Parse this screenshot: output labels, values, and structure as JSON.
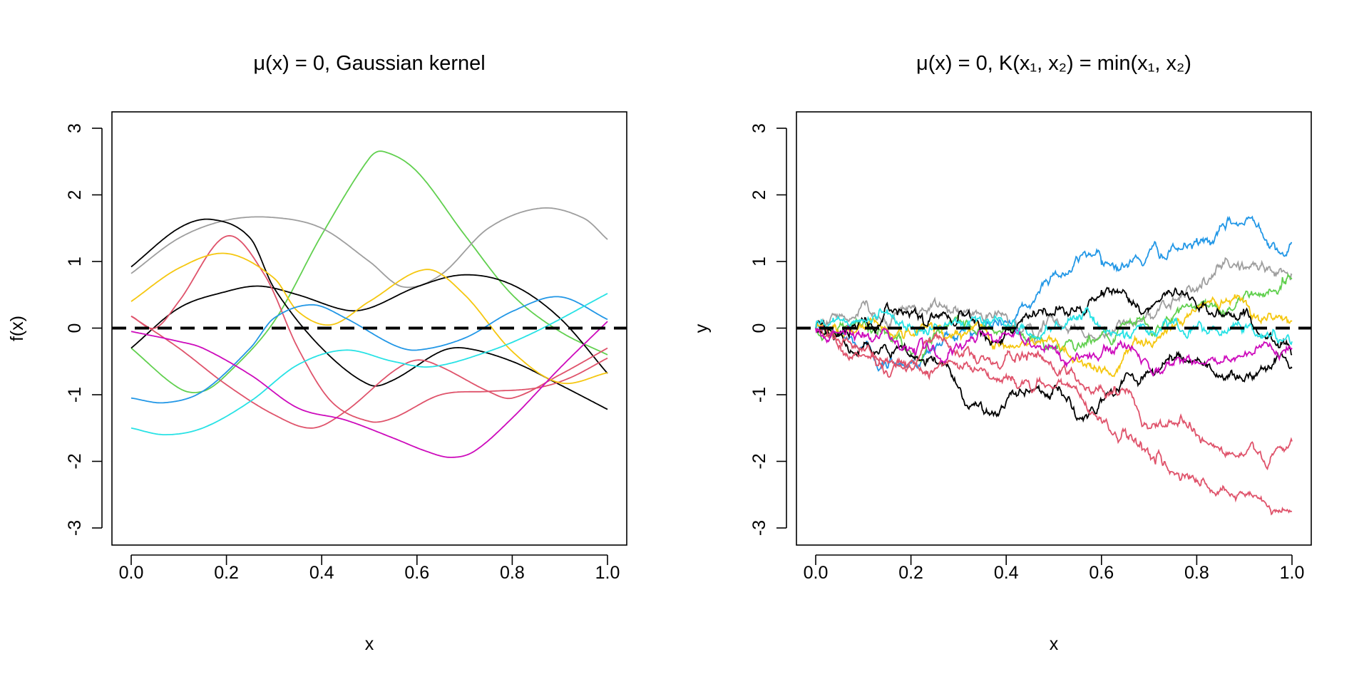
{
  "colors": {
    "black": "#000000",
    "red": "#DF536B",
    "green": "#61D04F",
    "blue": "#2297E6",
    "cyan": "#28E2E5",
    "magenta": "#CD0BBC",
    "yellow": "#F5C710",
    "gray": "#9E9E9E"
  },
  "chart_data": [
    {
      "type": "line",
      "title": "μ(x) = 0, Gaussian kernel",
      "xlabel": "x",
      "ylabel": "f(x)",
      "xlim": [
        0,
        1
      ],
      "ylim": [
        -3,
        3
      ],
      "xticks": [
        "0.0",
        "0.2",
        "0.4",
        "0.6",
        "0.8",
        "1.0"
      ],
      "yticks": [
        "-3",
        "-2",
        "-1",
        "0",
        "1",
        "2",
        "3"
      ],
      "reference_line": {
        "y": 0,
        "style": "dashed"
      },
      "series": [
        {
          "name": "green",
          "color": "#61D04F",
          "x": [
            0,
            0.1,
            0.15,
            0.2,
            0.3,
            0.4,
            0.5,
            0.53,
            0.6,
            0.7,
            0.8,
            0.9,
            1
          ],
          "y": [
            -0.3,
            -0.9,
            -0.95,
            -0.7,
            0.1,
            1.4,
            2.55,
            2.65,
            2.35,
            1.4,
            0.5,
            -0.05,
            -0.4
          ]
        },
        {
          "name": "gray",
          "color": "#9E9E9E",
          "x": [
            0,
            0.1,
            0.2,
            0.3,
            0.4,
            0.5,
            0.57,
            0.65,
            0.75,
            0.86,
            0.95,
            1
          ],
          "y": [
            0.82,
            1.35,
            1.62,
            1.66,
            1.5,
            1.0,
            0.62,
            0.8,
            1.5,
            1.8,
            1.65,
            1.33
          ]
        },
        {
          "name": "black-1",
          "color": "#000000",
          "x": [
            0,
            0.1,
            0.17,
            0.25,
            0.3,
            0.4,
            0.5,
            0.55,
            0.65,
            0.7,
            0.8,
            0.9,
            1
          ],
          "y": [
            0.92,
            1.5,
            1.63,
            1.35,
            0.6,
            -0.3,
            -0.85,
            -0.78,
            -0.35,
            -0.3,
            -0.5,
            -0.85,
            -1.22
          ]
        },
        {
          "name": "black-2",
          "color": "#000000",
          "x": [
            0,
            0.1,
            0.2,
            0.27,
            0.35,
            0.45,
            0.5,
            0.6,
            0.7,
            0.8,
            0.9,
            1
          ],
          "y": [
            -0.3,
            0.3,
            0.55,
            0.63,
            0.5,
            0.27,
            0.3,
            0.62,
            0.8,
            0.65,
            0.15,
            -0.68
          ]
        },
        {
          "name": "red-1",
          "color": "#DF536B",
          "x": [
            0,
            0.05,
            0.1,
            0.2,
            0.28,
            0.35,
            0.42,
            0.5,
            0.55,
            0.65,
            0.75,
            0.85,
            0.92,
            1
          ],
          "y": [
            0.18,
            0.0,
            0.4,
            1.38,
            0.8,
            -0.3,
            -1.1,
            -1.4,
            -1.35,
            -1.0,
            -0.95,
            -0.9,
            -0.75,
            -0.45
          ]
        },
        {
          "name": "red-2",
          "color": "#DF536B",
          "x": [
            0,
            0.1,
            0.2,
            0.3,
            0.38,
            0.45,
            0.55,
            0.6,
            0.65,
            0.75,
            0.8,
            0.9,
            1
          ],
          "y": [
            0.18,
            -0.3,
            -0.85,
            -1.3,
            -1.5,
            -1.25,
            -0.65,
            -0.48,
            -0.58,
            -0.95,
            -1.05,
            -0.7,
            -0.3
          ]
        },
        {
          "name": "yellow",
          "color": "#F5C710",
          "x": [
            0,
            0.1,
            0.2,
            0.3,
            0.35,
            0.42,
            0.5,
            0.62,
            0.7,
            0.8,
            0.9,
            1
          ],
          "y": [
            0.4,
            0.9,
            1.12,
            0.75,
            0.25,
            0.05,
            0.4,
            0.88,
            0.5,
            -0.35,
            -0.82,
            -0.67
          ]
        },
        {
          "name": "blue",
          "color": "#2297E6",
          "x": [
            0,
            0.07,
            0.15,
            0.25,
            0.3,
            0.38,
            0.45,
            0.55,
            0.6,
            0.7,
            0.8,
            0.9,
            1
          ],
          "y": [
            -1.05,
            -1.12,
            -0.95,
            -0.3,
            0.15,
            0.35,
            0.15,
            -0.25,
            -0.33,
            -0.15,
            0.25,
            0.47,
            0.13
          ]
        },
        {
          "name": "cyan",
          "color": "#28E2E5",
          "x": [
            0,
            0.07,
            0.15,
            0.25,
            0.35,
            0.45,
            0.55,
            0.63,
            0.75,
            0.85,
            1
          ],
          "y": [
            -1.5,
            -1.6,
            -1.5,
            -1.1,
            -0.55,
            -0.33,
            -0.5,
            -0.58,
            -0.35,
            -0.05,
            0.52
          ]
        },
        {
          "name": "magenta",
          "color": "#CD0BBC",
          "x": [
            0,
            0.1,
            0.15,
            0.25,
            0.35,
            0.45,
            0.55,
            0.62,
            0.67,
            0.72,
            0.8,
            0.9,
            1
          ],
          "y": [
            -0.05,
            -0.2,
            -0.3,
            -0.7,
            -1.2,
            -1.38,
            -1.65,
            -1.85,
            -1.94,
            -1.85,
            -1.35,
            -0.6,
            0.1
          ]
        }
      ]
    },
    {
      "type": "line",
      "title": "μ(x) = 0, K(x₁, x₂) = min(x₁, x₂)",
      "xlabel": "x",
      "ylabel": "y",
      "xlim": [
        0,
        1
      ],
      "ylim": [
        -3,
        3
      ],
      "xticks": [
        "0.0",
        "0.2",
        "0.4",
        "0.6",
        "0.8",
        "1.0"
      ],
      "yticks": [
        "-3",
        "-2",
        "-1",
        "0",
        "1",
        "2",
        "3"
      ],
      "reference_line": {
        "y": 0,
        "style": "dashed"
      },
      "series": [
        {
          "name": "blue",
          "color": "#2297E6",
          "x": [
            0,
            0.15,
            0.3,
            0.45,
            0.5,
            0.6,
            0.7,
            0.8,
            0.9,
            1
          ],
          "y": [
            0,
            -0.6,
            -0.1,
            0.3,
            0.8,
            0.95,
            1.15,
            1.35,
            1.55,
            1.28
          ]
        },
        {
          "name": "gray",
          "color": "#9E9E9E",
          "x": [
            0,
            0.1,
            0.2,
            0.4,
            0.5,
            0.6,
            0.7,
            0.8,
            0.9,
            1
          ],
          "y": [
            0,
            0.4,
            0.3,
            0.2,
            0.1,
            -0.1,
            0.2,
            0.6,
            0.9,
            0.8
          ]
        },
        {
          "name": "green",
          "color": "#61D04F",
          "x": [
            0,
            0.1,
            0.3,
            0.5,
            0.6,
            0.7,
            0.8,
            0.9,
            1
          ],
          "y": [
            0,
            0.1,
            0.1,
            -0.3,
            -0.1,
            0.0,
            0.3,
            0.5,
            0.75
          ]
        },
        {
          "name": "yellow",
          "color": "#F5C710",
          "x": [
            0,
            0.1,
            0.3,
            0.45,
            0.55,
            0.62,
            0.7,
            0.8,
            0.9,
            1
          ],
          "y": [
            0,
            0.0,
            -0.1,
            -0.2,
            -0.5,
            -0.7,
            -0.2,
            0.3,
            0.4,
            0.1
          ]
        },
        {
          "name": "black-1",
          "color": "#000000",
          "x": [
            0,
            0.1,
            0.3,
            0.4,
            0.5,
            0.63,
            0.7,
            0.8,
            0.9,
            1
          ],
          "y": [
            0,
            0.1,
            0.2,
            0.0,
            0.2,
            0.55,
            0.3,
            0.3,
            0.2,
            -0.4
          ]
        },
        {
          "name": "black-2",
          "color": "#000000",
          "x": [
            0,
            0.1,
            0.2,
            0.3,
            0.4,
            0.5,
            0.57,
            0.65,
            0.8,
            0.9,
            1
          ],
          "y": [
            0,
            -0.3,
            -0.4,
            -0.9,
            -1.1,
            -0.9,
            -1.35,
            -0.7,
            -0.5,
            -0.8,
            -0.6
          ]
        },
        {
          "name": "red-1",
          "color": "#DF536B",
          "x": [
            0,
            0.1,
            0.2,
            0.3,
            0.4,
            0.5,
            0.6,
            0.7,
            0.8,
            0.9,
            1
          ],
          "y": [
            0,
            -0.4,
            -0.6,
            -0.4,
            -0.4,
            -0.6,
            -0.9,
            -1.5,
            -1.6,
            -1.9,
            -1.7
          ]
        },
        {
          "name": "red-2",
          "color": "#DF536B",
          "x": [
            0,
            0.1,
            0.2,
            0.3,
            0.4,
            0.5,
            0.6,
            0.7,
            0.8,
            0.9,
            1
          ],
          "y": [
            0,
            -0.3,
            -0.5,
            -0.6,
            -0.7,
            -0.9,
            -1.4,
            -1.9,
            -2.3,
            -2.5,
            -2.75
          ]
        },
        {
          "name": "magenta",
          "color": "#CD0BBC",
          "x": [
            0,
            0.1,
            0.2,
            0.3,
            0.4,
            0.5,
            0.6,
            0.7,
            0.8,
            0.9,
            1
          ],
          "y": [
            0,
            -0.1,
            -0.3,
            -0.3,
            -0.1,
            -0.3,
            -0.4,
            -0.6,
            -0.5,
            -0.4,
            -0.3
          ]
        },
        {
          "name": "cyan",
          "color": "#28E2E5",
          "x": [
            0,
            0.1,
            0.2,
            0.3,
            0.4,
            0.5,
            0.6,
            0.7,
            0.8,
            0.9,
            1
          ],
          "y": [
            0,
            0.1,
            0.0,
            0.1,
            0.0,
            0.0,
            0.0,
            -0.1,
            0.0,
            0.0,
            -0.2
          ]
        }
      ]
    }
  ]
}
